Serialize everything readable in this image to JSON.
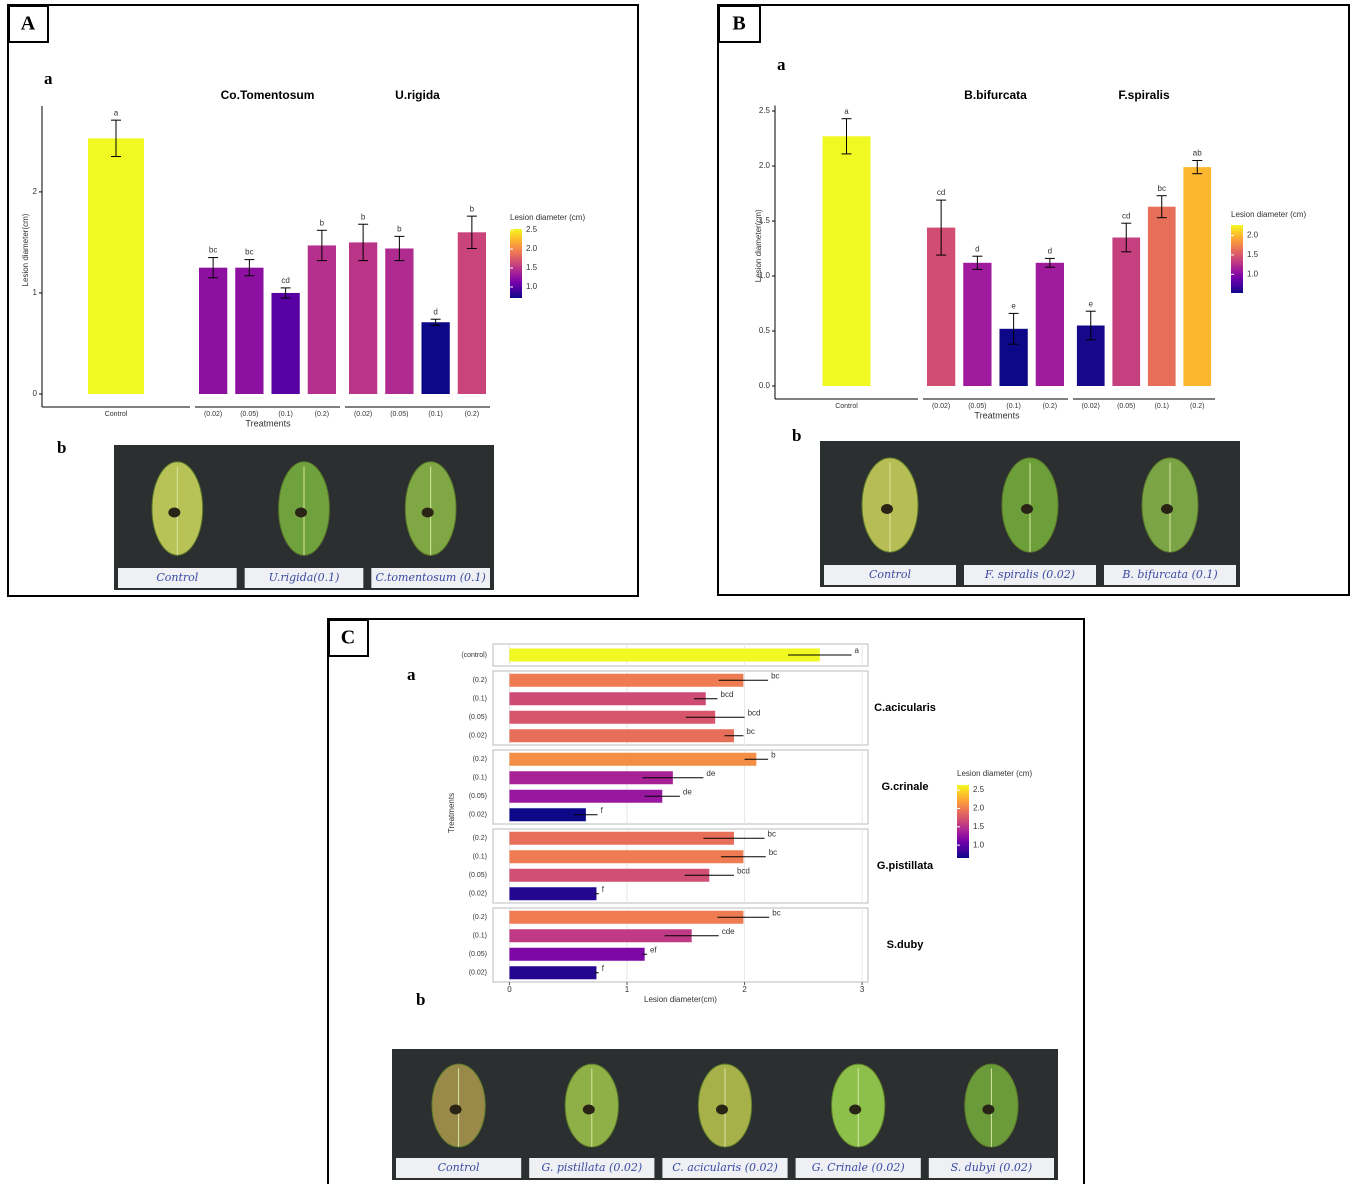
{
  "panels": [
    {
      "label": "A",
      "chart_label": "a",
      "photo_label": "b",
      "photo_captions": [
        "Control",
        "U.rigida(0.1)",
        "C.tomentosum (0.1)"
      ]
    },
    {
      "label": "B",
      "chart_label": "a",
      "photo_label": "b",
      "photo_captions": [
        "Control",
        "F. spiralis (0.02)",
        "B. bifurcata (0.1)"
      ]
    },
    {
      "label": "C",
      "chart_label": "a",
      "photo_label": "b",
      "photo_captions": [
        "Control",
        "G. pistillata (0.02)",
        "C. acicularis (0.02)",
        "G. Crinale (0.02)",
        "S. dubyi (0.02)"
      ]
    }
  ],
  "chart_data": [
    {
      "type": "bar",
      "orientation": "vertical",
      "xlabel": "Treatments",
      "ylabel": "Lesion diameter(cm)",
      "ylim": [
        0,
        2.85
      ],
      "yticks": [
        0,
        1,
        2
      ],
      "colormap": "plasma",
      "legend": {
        "title": "Lesion diameter (cm)",
        "limits": [
          0.71,
          2.53
        ],
        "ticks": [
          {
            "value": 1,
            "label": "1.0"
          },
          1.5,
          {
            "value": 2,
            "label": "2.0"
          },
          2.5
        ]
      },
      "control": {
        "category": "Control",
        "value": 2.53,
        "error": 0.18,
        "letter": "a"
      },
      "facets": [
        {
          "title": "Co.Tomentosum",
          "categories": [
            "(0.02)",
            "(0.05)",
            "(0.1)",
            "(0.2)"
          ],
          "values": [
            1.25,
            1.25,
            1.0,
            1.47
          ],
          "errors": [
            0.1,
            0.08,
            0.05,
            0.15
          ],
          "letters": [
            "bc",
            "bc",
            "cd",
            "b"
          ]
        },
        {
          "title": "U.rigida",
          "categories": [
            "(0.02)",
            "(0.05)",
            "(0.1)",
            "(0.2)"
          ],
          "values": [
            1.5,
            1.44,
            0.71,
            1.6
          ],
          "errors": [
            0.18,
            0.12,
            0.03,
            0.16
          ],
          "letters": [
            "b",
            "b",
            "d",
            "b"
          ]
        }
      ]
    },
    {
      "type": "bar",
      "orientation": "vertical",
      "xlabel": "Treatments",
      "ylabel": "Lesion diameter(cm)",
      "ylim": [
        0,
        2.55
      ],
      "yticks": [
        {
          "value": 0,
          "label": "0.0"
        },
        0.5,
        {
          "value": 1,
          "label": "1.0"
        },
        1.5,
        {
          "value": 2,
          "label": "2.0"
        },
        2.5
      ],
      "colormap": "plasma",
      "legend": {
        "title": "Lesion diameter (cm)",
        "limits": [
          0.52,
          2.27
        ],
        "ticks": [
          {
            "value": 1,
            "label": "1.0"
          },
          1.5,
          {
            "value": 2,
            "label": "2.0"
          }
        ]
      },
      "control": {
        "category": "Control",
        "value": 2.27,
        "error": 0.16,
        "letter": "a"
      },
      "facets": [
        {
          "title": "B.bifurcata",
          "categories": [
            "(0.02)",
            "(0.05)",
            "(0.1)",
            "(0.2)"
          ],
          "values": [
            1.44,
            1.12,
            0.52,
            1.12
          ],
          "errors": [
            0.25,
            0.06,
            0.14,
            0.04
          ],
          "letters": [
            "cd",
            "d",
            "e",
            "d"
          ]
        },
        {
          "title": "F.spiralis",
          "categories": [
            "(0.02)",
            "(0.05)",
            "(0.1)",
            "(0.2)"
          ],
          "values": [
            0.55,
            1.35,
            1.63,
            1.99
          ],
          "errors": [
            0.13,
            0.13,
            0.1,
            0.06
          ],
          "letters": [
            "e",
            "cd",
            "bc",
            "ab"
          ]
        }
      ]
    },
    {
      "type": "bar",
      "orientation": "horizontal",
      "xlabel": "Lesion diameter(cm)",
      "ylabel": "Treatments",
      "xlim": [
        -0.14,
        3.05
      ],
      "xticks": [
        0,
        1,
        2,
        3
      ],
      "grid": true,
      "colormap": "plasma",
      "legend": {
        "title": "Lesion diameter (cm)",
        "limits": [
          0.65,
          2.64
        ],
        "ticks": [
          {
            "value": 1,
            "label": "1.0"
          },
          1.5,
          {
            "value": 2,
            "label": "2.0"
          },
          2.5
        ]
      },
      "control": {
        "category": "(control)",
        "value": 2.64,
        "error": 0.27,
        "letter": "a"
      },
      "facets": [
        {
          "title": "C.acicularis",
          "categories": [
            "(0.2)",
            "(0.1)",
            "(0.05)",
            "(0.02)"
          ],
          "values": [
            1.99,
            1.67,
            1.75,
            1.91
          ],
          "errors": [
            0.21,
            0.1,
            0.25,
            0.08
          ],
          "letters": [
            "bc",
            "bcd",
            "bcd",
            "bc"
          ]
        },
        {
          "title": "G.crinale",
          "categories": [
            "(0.2)",
            "(0.1)",
            "(0.05)",
            "(0.02)"
          ],
          "values": [
            2.1,
            1.39,
            1.3,
            0.65
          ],
          "errors": [
            0.1,
            0.26,
            0.15,
            0.1
          ],
          "letters": [
            "b",
            "de",
            "de",
            "f"
          ]
        },
        {
          "title": "G.pistillata",
          "categories": [
            "(0.2)",
            "(0.1)",
            "(0.05)",
            "(0.02)"
          ],
          "values": [
            1.91,
            1.99,
            1.7,
            0.74
          ],
          "errors": [
            0.26,
            0.19,
            0.21,
            0.02
          ],
          "letters": [
            "bc",
            "bc",
            "bcd",
            "f"
          ]
        },
        {
          "title": "S.duby",
          "categories": [
            "(0.2)",
            "(0.1)",
            "(0.05)",
            "(0.02)"
          ],
          "values": [
            1.99,
            1.55,
            1.15,
            0.74
          ],
          "errors": [
            0.22,
            0.23,
            0.02,
            0.02
          ],
          "letters": [
            "bc",
            "cde",
            "ef",
            "f"
          ]
        }
      ]
    }
  ]
}
